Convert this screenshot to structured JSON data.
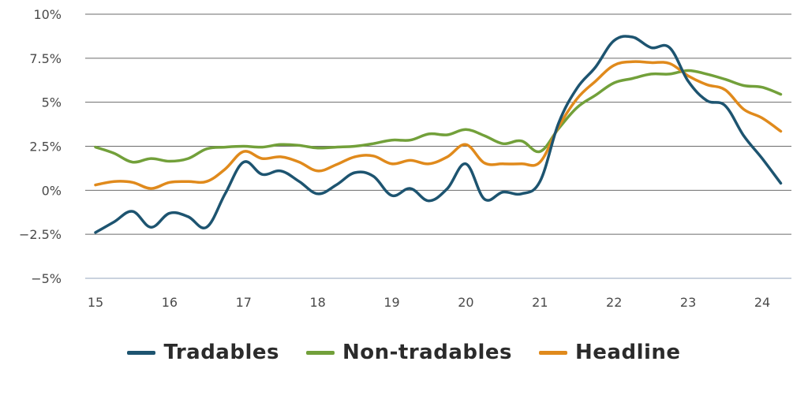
{
  "chart_data": {
    "type": "line",
    "title": "",
    "xlabel": "",
    "ylabel": "",
    "xlim": [
      15,
      24.35
    ],
    "ylim": [
      -5,
      10
    ],
    "x_ticks": [
      {
        "value": 15,
        "label": "15"
      },
      {
        "value": 16,
        "label": "16"
      },
      {
        "value": 17,
        "label": "17"
      },
      {
        "value": 18,
        "label": "18"
      },
      {
        "value": 19,
        "label": "19"
      },
      {
        "value": 20,
        "label": "20"
      },
      {
        "value": 21,
        "label": "21"
      },
      {
        "value": 22,
        "label": "22"
      },
      {
        "value": 23,
        "label": "23"
      },
      {
        "value": 24,
        "label": "24"
      }
    ],
    "y_ticks": [
      {
        "value": 10,
        "label": "10%"
      },
      {
        "value": 7.5,
        "label": "7.5%"
      },
      {
        "value": 5,
        "label": "5%"
      },
      {
        "value": 2.5,
        "label": "2.5%"
      },
      {
        "value": 0,
        "label": "0%"
      },
      {
        "value": -2.5,
        "label": "−2.5%"
      },
      {
        "value": -5,
        "label": "−5%"
      }
    ],
    "grid": true,
    "legend_position": "bottom",
    "series": [
      {
        "name": "Tradables",
        "color": "#1d5470",
        "points": [
          [
            15.0,
            -2.4
          ],
          [
            15.25,
            -1.8
          ],
          [
            15.5,
            -1.2
          ],
          [
            15.75,
            -2.1
          ],
          [
            16.0,
            -1.3
          ],
          [
            16.25,
            -1.5
          ],
          [
            16.5,
            -2.1
          ],
          [
            16.75,
            -0.2
          ],
          [
            17.0,
            1.6
          ],
          [
            17.25,
            0.9
          ],
          [
            17.5,
            1.1
          ],
          [
            17.75,
            0.5
          ],
          [
            18.0,
            -0.2
          ],
          [
            18.25,
            0.3
          ],
          [
            18.5,
            1.0
          ],
          [
            18.75,
            0.8
          ],
          [
            19.0,
            -0.3
          ],
          [
            19.25,
            0.1
          ],
          [
            19.5,
            -0.6
          ],
          [
            19.75,
            0.1
          ],
          [
            20.0,
            1.5
          ],
          [
            20.25,
            -0.5
          ],
          [
            20.5,
            -0.1
          ],
          [
            20.75,
            -0.2
          ],
          [
            21.0,
            0.5
          ],
          [
            21.25,
            3.8
          ],
          [
            21.5,
            5.8
          ],
          [
            21.75,
            7.0
          ],
          [
            22.0,
            8.5
          ],
          [
            22.25,
            8.7
          ],
          [
            22.5,
            8.1
          ],
          [
            22.75,
            8.1
          ],
          [
            23.0,
            6.2
          ],
          [
            23.25,
            5.1
          ],
          [
            23.5,
            4.8
          ],
          [
            23.75,
            3.1
          ],
          [
            24.0,
            1.8
          ],
          [
            24.25,
            0.4
          ]
        ]
      },
      {
        "name": "Non-tradables",
        "color": "#72a03a",
        "points": [
          [
            15.0,
            2.45
          ],
          [
            15.25,
            2.1
          ],
          [
            15.5,
            1.6
          ],
          [
            15.75,
            1.8
          ],
          [
            16.0,
            1.65
          ],
          [
            16.25,
            1.8
          ],
          [
            16.5,
            2.35
          ],
          [
            16.75,
            2.45
          ],
          [
            17.0,
            2.5
          ],
          [
            17.25,
            2.45
          ],
          [
            17.5,
            2.6
          ],
          [
            17.75,
            2.55
          ],
          [
            18.0,
            2.4
          ],
          [
            18.25,
            2.45
          ],
          [
            18.5,
            2.5
          ],
          [
            18.75,
            2.65
          ],
          [
            19.0,
            2.85
          ],
          [
            19.25,
            2.85
          ],
          [
            19.5,
            3.2
          ],
          [
            19.75,
            3.15
          ],
          [
            20.0,
            3.45
          ],
          [
            20.25,
            3.1
          ],
          [
            20.5,
            2.65
          ],
          [
            20.75,
            2.8
          ],
          [
            21.0,
            2.2
          ],
          [
            21.25,
            3.5
          ],
          [
            21.5,
            4.7
          ],
          [
            21.75,
            5.4
          ],
          [
            22.0,
            6.1
          ],
          [
            22.25,
            6.35
          ],
          [
            22.5,
            6.6
          ],
          [
            22.75,
            6.6
          ],
          [
            23.0,
            6.8
          ],
          [
            23.25,
            6.6
          ],
          [
            23.5,
            6.3
          ],
          [
            23.75,
            5.95
          ],
          [
            24.0,
            5.85
          ],
          [
            24.25,
            5.45
          ]
        ]
      },
      {
        "name": "Headline",
        "color": "#e08a1c",
        "points": [
          [
            15.0,
            0.3
          ],
          [
            15.25,
            0.5
          ],
          [
            15.5,
            0.45
          ],
          [
            15.75,
            0.1
          ],
          [
            16.0,
            0.45
          ],
          [
            16.25,
            0.5
          ],
          [
            16.5,
            0.5
          ],
          [
            16.75,
            1.2
          ],
          [
            17.0,
            2.2
          ],
          [
            17.25,
            1.8
          ],
          [
            17.5,
            1.9
          ],
          [
            17.75,
            1.6
          ],
          [
            18.0,
            1.1
          ],
          [
            18.25,
            1.45
          ],
          [
            18.5,
            1.9
          ],
          [
            18.75,
            1.95
          ],
          [
            19.0,
            1.5
          ],
          [
            19.25,
            1.7
          ],
          [
            19.5,
            1.5
          ],
          [
            19.75,
            1.9
          ],
          [
            20.0,
            2.6
          ],
          [
            20.25,
            1.55
          ],
          [
            20.5,
            1.5
          ],
          [
            20.75,
            1.5
          ],
          [
            21.0,
            1.6
          ],
          [
            21.25,
            3.6
          ],
          [
            21.5,
            5.2
          ],
          [
            21.75,
            6.2
          ],
          [
            22.0,
            7.1
          ],
          [
            22.25,
            7.3
          ],
          [
            22.5,
            7.25
          ],
          [
            22.75,
            7.2
          ],
          [
            23.0,
            6.5
          ],
          [
            23.25,
            6.0
          ],
          [
            23.5,
            5.7
          ],
          [
            23.75,
            4.6
          ],
          [
            24.0,
            4.1
          ],
          [
            24.25,
            3.35
          ]
        ]
      }
    ]
  },
  "legend": {
    "items": [
      {
        "label": "Tradables",
        "color": "#1d5470"
      },
      {
        "label": "Non-tradables",
        "color": "#72a03a"
      },
      {
        "label": "Headline",
        "color": "#e08a1c"
      }
    ]
  }
}
